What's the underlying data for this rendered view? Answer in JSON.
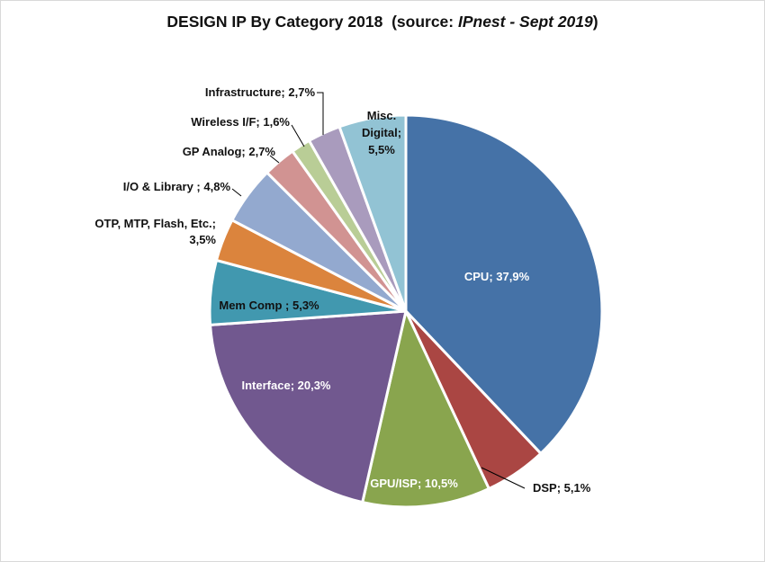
{
  "chart_data": {
    "type": "pie",
    "title": {
      "main": "DESIGN IP By Category 2018",
      "source_open": "(source: ",
      "source_italic": "IPnest - Sept 2019",
      "source_close": ")"
    },
    "slices": [
      {
        "name": "CPU",
        "value": 37.9,
        "label_lines": [
          "CPU; 37,9%"
        ],
        "color": "#4572A7"
      },
      {
        "name": "DSP",
        "value": 5.1,
        "label_lines": [
          "DSP; 5,1%"
        ],
        "color": "#AA4643"
      },
      {
        "name": "GPU/ISP",
        "value": 10.5,
        "label_lines": [
          "GPU/ISP; 10,5%"
        ],
        "color": "#89A54E"
      },
      {
        "name": "Interface",
        "value": 20.3,
        "label_lines": [
          "Interface; 20,3%"
        ],
        "color": "#71588F"
      },
      {
        "name": "Mem Comp",
        "value": 5.3,
        "label_lines": [
          "Mem Comp ; 5,3%"
        ],
        "color": "#4198AF"
      },
      {
        "name": "OTP, MTP, Flash, Etc.",
        "value": 3.5,
        "label_lines": [
          "OTP, MTP, Flash, Etc.;",
          "3,5%"
        ],
        "color": "#DB843D"
      },
      {
        "name": "I/O & Library",
        "value": 4.8,
        "label_lines": [
          "I/O & Library ; 4,8%"
        ],
        "color": "#93A9CF"
      },
      {
        "name": "GP Analog",
        "value": 2.7,
        "label_lines": [
          "GP Analog; 2,7%"
        ],
        "color": "#D19392"
      },
      {
        "name": "Wireless I/F",
        "value": 1.6,
        "label_lines": [
          "Wireless I/F; 1,6%"
        ],
        "color": "#B9CD96"
      },
      {
        "name": "Infrastructure",
        "value": 2.7,
        "label_lines": [
          "Infrastructure; 2,7%"
        ],
        "color": "#A99BBD"
      },
      {
        "name": "Misc. Digital",
        "value": 5.5,
        "label_lines": [
          "Misc.",
          "Digital;",
          "5,5%"
        ],
        "color": "#92C3D4"
      }
    ],
    "start_angle": "12 o'clock",
    "direction": "clockwise",
    "legend": "none"
  }
}
